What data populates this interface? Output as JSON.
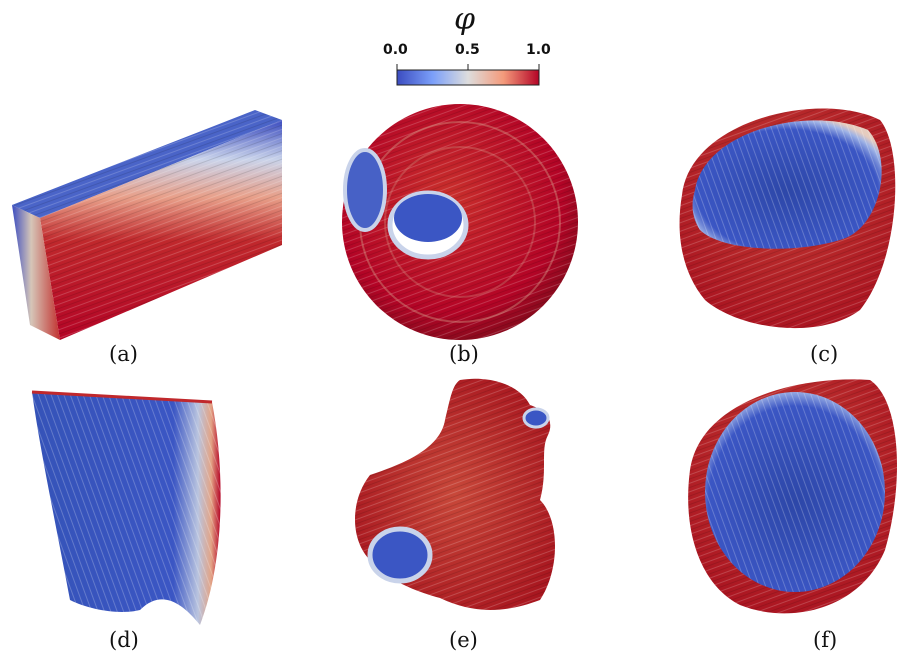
{
  "colorbar": {
    "title": "φ",
    "ticks": [
      "0.0",
      "0.5",
      "1.0"
    ],
    "colors": {
      "low": "#3b4cc0",
      "mid": "#dddddd",
      "high": "#b40426"
    }
  },
  "panels": [
    {
      "label": "(a)",
      "shape": "slab"
    },
    {
      "label": "(b)",
      "shape": "sphere"
    },
    {
      "label": "(c)",
      "shape": "cup"
    },
    {
      "label": "(d)",
      "shape": "wedge"
    },
    {
      "label": "(e)",
      "shape": "atrium"
    },
    {
      "label": "(f)",
      "shape": "cup"
    }
  ]
}
